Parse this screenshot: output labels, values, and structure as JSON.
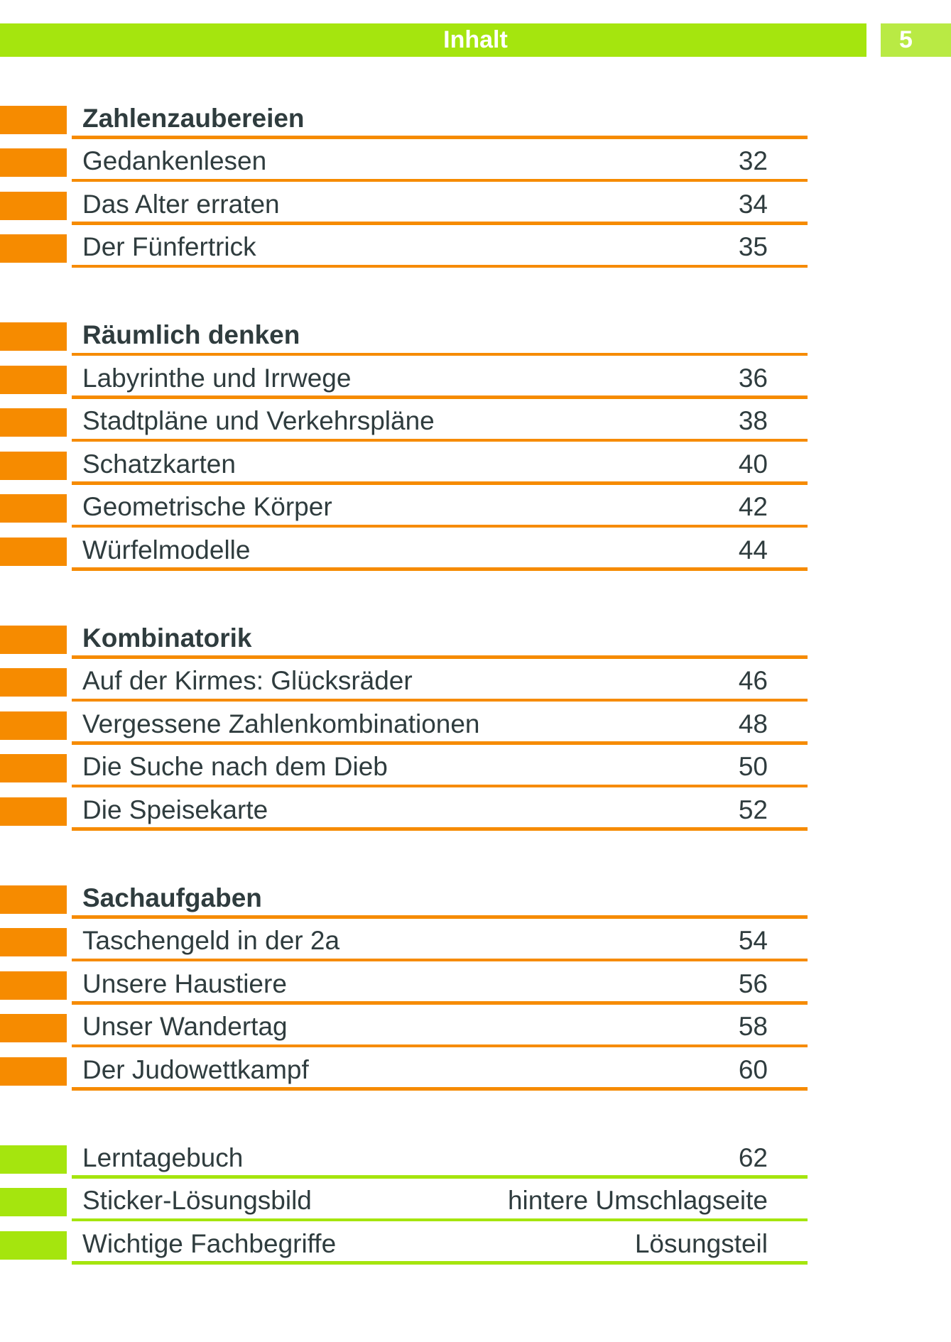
{
  "header": {
    "title": "Inhalt",
    "page_number": "5"
  },
  "colors": {
    "orange": "#f68b00",
    "green": "#a5e50e",
    "green_box": "#b9ea44",
    "ink": "#2f3c3e"
  },
  "sections": [
    {
      "heading": "Zahlenzaubereien",
      "color": "orange",
      "items": [
        {
          "title": "Gedankenlesen",
          "page": "32"
        },
        {
          "title": "Das Alter erraten",
          "page": "34"
        },
        {
          "title": "Der Fünfertrick",
          "page": "35"
        }
      ]
    },
    {
      "heading": "Räumlich denken",
      "color": "orange",
      "items": [
        {
          "title": "Labyrinthe und Irrwege",
          "page": "36"
        },
        {
          "title": "Stadtpläne und Verkehrspläne",
          "page": "38"
        },
        {
          "title": "Schatzkarten",
          "page": "40"
        },
        {
          "title": "Geometrische Körper",
          "page": "42"
        },
        {
          "title": "Würfelmodelle",
          "page": "44"
        }
      ]
    },
    {
      "heading": "Kombinatorik",
      "color": "orange",
      "items": [
        {
          "title": "Auf der Kirmes: Glücksräder",
          "page": "46"
        },
        {
          "title": "Vergessene Zahlenkombinationen",
          "page": "48"
        },
        {
          "title": "Die Suche nach dem Dieb",
          "page": "50"
        },
        {
          "title": "Die Speisekarte",
          "page": "52"
        }
      ]
    },
    {
      "heading": "Sachaufgaben",
      "color": "orange",
      "items": [
        {
          "title": "Taschengeld in der 2a",
          "page": "54"
        },
        {
          "title": "Unsere Haustiere",
          "page": "56"
        },
        {
          "title": "Unser Wandertag",
          "page": "58"
        },
        {
          "title": "Der Judowettkampf",
          "page": "60"
        }
      ]
    },
    {
      "heading": "",
      "color": "green",
      "items": [
        {
          "title": "Lerntagebuch",
          "page": "62"
        },
        {
          "title": "Sticker-Lösungsbild",
          "page": "hintere Umschlagseite"
        },
        {
          "title": "Wichtige Fachbegriffe",
          "page": "Lösungsteil"
        }
      ]
    }
  ]
}
